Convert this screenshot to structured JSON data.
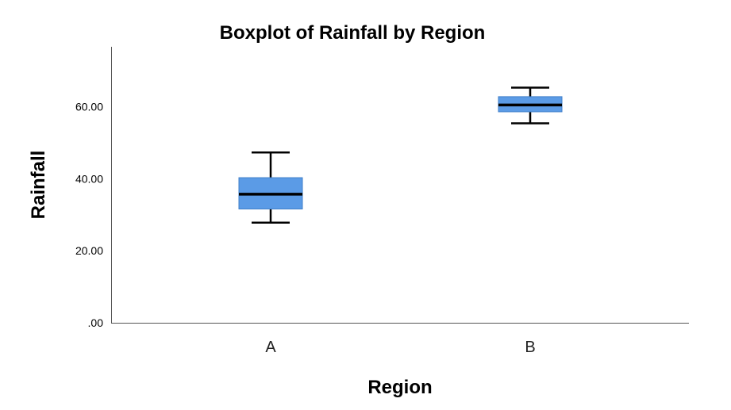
{
  "chart_data": {
    "type": "boxplot",
    "title": "Boxplot of Rainfall by Region",
    "xlabel": "Region",
    "ylabel": "Rainfall",
    "ylim": [
      0,
      75
    ],
    "y_ticks": [
      0,
      20,
      40,
      60
    ],
    "y_tick_labels": [
      ".00",
      "20.00",
      "40.00",
      "60.00"
    ],
    "categories": [
      "A",
      "B"
    ],
    "boxes": [
      {
        "category": "A",
        "min": 27.8,
        "q1": 31.6,
        "median": 35.7,
        "q3": 40.3,
        "max": 47.3
      },
      {
        "category": "B",
        "min": 55.4,
        "q1": 58.6,
        "median": 60.5,
        "q3": 62.8,
        "max": 65.3
      }
    ],
    "box_color": "#5B9BE6",
    "median_color": "#000000",
    "whisker_color": "#000000",
    "axis_color": "#555555",
    "grid": false
  }
}
